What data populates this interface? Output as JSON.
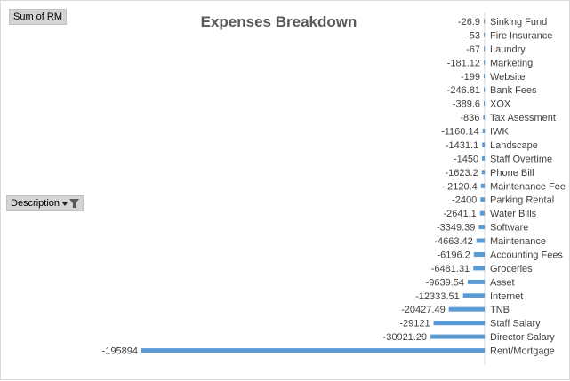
{
  "field_buttons": {
    "value_field": "Sum of RM",
    "row_field": "Description",
    "row_field_icon": "dropdown-filter-icon"
  },
  "colors": {
    "bar": "#5b9bd5",
    "axis": "#d9d9d9",
    "text": "#404040",
    "title": "#595959"
  },
  "chart_data": {
    "type": "bar",
    "orientation": "horizontal",
    "title": "Expenses Breakdown",
    "xlabel": "",
    "ylabel": "",
    "data_labels": true,
    "grid": false,
    "legend": "none",
    "categories": [
      "Sinking Fund",
      "Fire Insurance",
      "Laundry",
      "Marketing",
      "Website",
      "Bank Fees",
      "XOX",
      "Tax Asessment",
      "IWK",
      "Landscape",
      "Staff Overtime",
      "Phone Bill",
      "Maintenance Fee",
      "Parking Rental",
      "Water Bills",
      "Software",
      "Maintenance",
      "Accounting Fees",
      "Groceries",
      "Asset",
      "Internet",
      "TNB",
      "Staff Salary",
      "Director Salary",
      "Rent/Mortgage"
    ],
    "values": [
      -26.9,
      -53,
      -67,
      -181.12,
      -199,
      -246.81,
      -389.6,
      -836,
      -1160.14,
      -1431.1,
      -1450,
      -1623.2,
      -2120.4,
      -2400,
      -2641.1,
      -3349.39,
      -4663.42,
      -6196.2,
      -6481.31,
      -9639.54,
      -12333.51,
      -20427.49,
      -29121,
      -30921.29,
      -195894
    ],
    "value_labels": [
      "-26.9",
      "-53",
      "-67",
      "-181.12",
      "-199",
      "-246.81",
      "-389.6",
      "-836",
      "-1160.14",
      "-1431.1",
      "-1450",
      "-1623.2",
      "-2120.4",
      "-2400",
      "-2641.1",
      "-3349.39",
      "-4663.42",
      "-6196.2",
      "-6481.31",
      "-9639.54",
      "-12333.51",
      "-20427.49",
      "-29121",
      "-30921.29",
      "-195894"
    ]
  }
}
